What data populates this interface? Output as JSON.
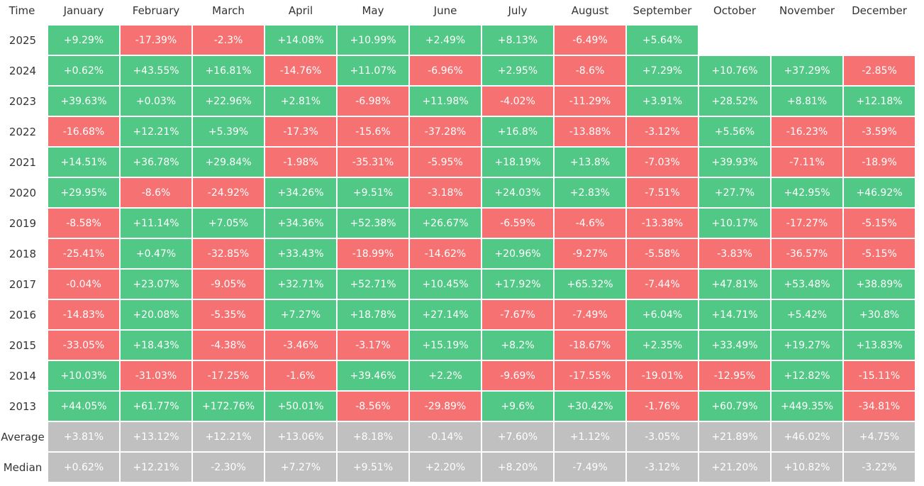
{
  "header": [
    "Time",
    "January",
    "February",
    "March",
    "April",
    "May",
    "June",
    "July",
    "August",
    "September",
    "October",
    "November",
    "December"
  ],
  "rows": [
    {
      "label": "2025",
      "cells": [
        "+9.29%",
        "-17.39%",
        "-2.3%",
        "+14.08%",
        "+10.99%",
        "+2.49%",
        "+8.13%",
        "-6.49%",
        "+5.64%"
      ]
    },
    {
      "label": "2024",
      "cells": [
        "+0.62%",
        "+43.55%",
        "+16.81%",
        "-14.76%",
        "+11.07%",
        "-6.96%",
        "+2.95%",
        "-8.6%",
        "+7.29%",
        "+10.76%",
        "+37.29%",
        "-2.85%"
      ]
    },
    {
      "label": "2023",
      "cells": [
        "+39.63%",
        "+0.03%",
        "+22.96%",
        "+2.81%",
        "-6.98%",
        "+11.98%",
        "-4.02%",
        "-11.29%",
        "+3.91%",
        "+28.52%",
        "+8.81%",
        "+12.18%"
      ]
    },
    {
      "label": "2022",
      "cells": [
        "-16.68%",
        "+12.21%",
        "+5.39%",
        "-17.3%",
        "-15.6%",
        "-37.28%",
        "+16.8%",
        "-13.88%",
        "-3.12%",
        "+5.56%",
        "-16.23%",
        "-3.59%"
      ]
    },
    {
      "label": "2021",
      "cells": [
        "+14.51%",
        "+36.78%",
        "+29.84%",
        "-1.98%",
        "-35.31%",
        "-5.95%",
        "+18.19%",
        "+13.8%",
        "-7.03%",
        "+39.93%",
        "-7.11%",
        "-18.9%"
      ]
    },
    {
      "label": "2020",
      "cells": [
        "+29.95%",
        "-8.6%",
        "-24.92%",
        "+34.26%",
        "+9.51%",
        "-3.18%",
        "+24.03%",
        "+2.83%",
        "-7.51%",
        "+27.7%",
        "+42.95%",
        "+46.92%"
      ]
    },
    {
      "label": "2019",
      "cells": [
        "-8.58%",
        "+11.14%",
        "+7.05%",
        "+34.36%",
        "+52.38%",
        "+26.67%",
        "-6.59%",
        "-4.6%",
        "-13.38%",
        "+10.17%",
        "-17.27%",
        "-5.15%"
      ]
    },
    {
      "label": "2018",
      "cells": [
        "-25.41%",
        "+0.47%",
        "-32.85%",
        "+33.43%",
        "-18.99%",
        "-14.62%",
        "+20.96%",
        "-9.27%",
        "-5.58%",
        "-3.83%",
        "-36.57%",
        "-5.15%"
      ]
    },
    {
      "label": "2017",
      "cells": [
        "-0.04%",
        "+23.07%",
        "-9.05%",
        "+32.71%",
        "+52.71%",
        "+10.45%",
        "+17.92%",
        "+65.32%",
        "-7.44%",
        "+47.81%",
        "+53.48%",
        "+38.89%"
      ]
    },
    {
      "label": "2016",
      "cells": [
        "-14.83%",
        "+20.08%",
        "-5.35%",
        "+7.27%",
        "+18.78%",
        "+27.14%",
        "-7.67%",
        "-7.49%",
        "+6.04%",
        "+14.71%",
        "+5.42%",
        "+30.8%"
      ]
    },
    {
      "label": "2015",
      "cells": [
        "-33.05%",
        "+18.43%",
        "-4.38%",
        "-3.46%",
        "-3.17%",
        "+15.19%",
        "+8.2%",
        "-18.67%",
        "+2.35%",
        "+33.49%",
        "+19.27%",
        "+13.83%"
      ]
    },
    {
      "label": "2014",
      "cells": [
        "+10.03%",
        "-31.03%",
        "-17.25%",
        "-1.6%",
        "+39.46%",
        "+2.2%",
        "-9.69%",
        "-17.55%",
        "-19.01%",
        "-12.95%",
        "+12.82%",
        "-15.11%"
      ]
    },
    {
      "label": "2013",
      "cells": [
        "+44.05%",
        "+61.77%",
        "+172.76%",
        "+50.01%",
        "-8.56%",
        "-29.89%",
        "+9.6%",
        "+30.42%",
        "-1.76%",
        "+60.79%",
        "+449.35%",
        "-34.81%"
      ]
    }
  ],
  "summary": [
    {
      "label": "Average",
      "cells": [
        "+3.81%",
        "+13.12%",
        "+12.21%",
        "+13.06%",
        "+8.18%",
        "-0.14%",
        "+7.60%",
        "+1.12%",
        "-3.05%",
        "+21.89%",
        "+46.02%",
        "+4.75%"
      ]
    },
    {
      "label": "Median",
      "cells": [
        "+0.62%",
        "+12.21%",
        "-2.30%",
        "+7.27%",
        "+9.51%",
        "+2.20%",
        "+8.20%",
        "-7.49%",
        "-3.12%",
        "+21.20%",
        "+10.82%",
        "-3.22%"
      ]
    }
  ]
}
